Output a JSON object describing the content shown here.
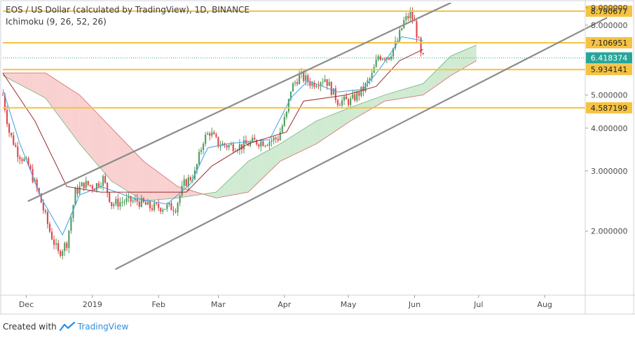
{
  "legend": {
    "title": "EOS / US Dollar (calculated by TradingView), 1D, BINANCE",
    "indicator": "Ichimoku (9, 26, 52, 26)"
  },
  "footer": {
    "created_with": "Created with",
    "brand": "TradingView"
  },
  "colors": {
    "up": "#4f9e5c",
    "down": "#e0474c",
    "level": "#f5c342",
    "channel": "#8c8c8c",
    "kumo_bull": "#c8e6c9",
    "kumo_bear": "#f8c8c8",
    "tenkan": "#3aa0e8",
    "kijun": "#9c2b2b",
    "price_badge": "#26a69a"
  },
  "chart_data": {
    "type": "candlestick",
    "title": "EOS / US Dollar (calculated by TradingView), 1D, BINANCE",
    "x_ticks": [
      "Dec",
      "2019",
      "Feb",
      "Mar",
      "Apr",
      "May",
      "Jun",
      "Jul",
      "Aug"
    ],
    "x_tick_dates": [
      "2018-12-01",
      "2019-01-01",
      "2019-02-01",
      "2019-03-01",
      "2019-04-01",
      "2019-05-01",
      "2019-06-01",
      "2019-07-01",
      "2019-08-01"
    ],
    "x_range": [
      "2018-11-20",
      "2019-08-20"
    ],
    "y_ticks": [
      "2.000000",
      "3.000000",
      "4.000000",
      "5.000000",
      "8.000000",
      "9.000000"
    ],
    "y_range": [
      1.3,
      9.3
    ],
    "y_scale": "log",
    "grid": false,
    "horizontal_levels": [
      {
        "value": 8.790677,
        "label": "8.790677"
      },
      {
        "value": 7.106951,
        "label": "7.106951"
      },
      {
        "value": 5.934141,
        "label": "5.934141"
      },
      {
        "value": 4.587199,
        "label": "4.587199"
      }
    ],
    "last_price": {
      "value": 6.418374,
      "label": "6.418374"
    },
    "channel_lines": [
      {
        "from": {
          "date": "2018-12-02",
          "price": 2.45
        },
        "to": {
          "date": "2019-06-18",
          "price": 9.3
        }
      },
      {
        "from": {
          "date": "2019-01-12",
          "price": 1.55
        },
        "to": {
          "date": "2019-08-30",
          "price": 8.4
        }
      }
    ],
    "close_path": [
      [
        "2018-11-20",
        5.0
      ],
      [
        "2018-11-23",
        3.9
      ],
      [
        "2018-11-27",
        3.4
      ],
      [
        "2018-12-02",
        3.1
      ],
      [
        "2018-12-07",
        2.55
      ],
      [
        "2018-12-12",
        2.0
      ],
      [
        "2018-12-16",
        1.72
      ],
      [
        "2018-12-20",
        1.85
      ],
      [
        "2018-12-24",
        2.6
      ],
      [
        "2018-12-28",
        2.75
      ],
      [
        "2019-01-02",
        2.7
      ],
      [
        "2019-01-06",
        2.85
      ],
      [
        "2019-01-10",
        2.4
      ],
      [
        "2019-01-16",
        2.45
      ],
      [
        "2019-01-22",
        2.45
      ],
      [
        "2019-01-28",
        2.35
      ],
      [
        "2019-02-04",
        2.35
      ],
      [
        "2019-02-09",
        2.35
      ],
      [
        "2019-02-13",
        2.75
      ],
      [
        "2019-02-18",
        2.95
      ],
      [
        "2019-02-22",
        3.7
      ],
      [
        "2019-02-25",
        3.9
      ],
      [
        "2019-03-01",
        3.6
      ],
      [
        "2019-03-06",
        3.55
      ],
      [
        "2019-03-12",
        3.55
      ],
      [
        "2019-03-18",
        3.65
      ],
      [
        "2019-03-24",
        3.65
      ],
      [
        "2019-03-29",
        3.75
      ],
      [
        "2019-04-02",
        4.4
      ],
      [
        "2019-04-04",
        5.2
      ],
      [
        "2019-04-08",
        5.7
      ],
      [
        "2019-04-14",
        5.4
      ],
      [
        "2019-04-20",
        5.6
      ],
      [
        "2019-04-26",
        4.8
      ],
      [
        "2019-05-02",
        4.8
      ],
      [
        "2019-05-08",
        5.2
      ],
      [
        "2019-05-12",
        5.7
      ],
      [
        "2019-05-15",
        6.5
      ],
      [
        "2019-05-20",
        6.5
      ],
      [
        "2019-05-24",
        7.2
      ],
      [
        "2019-05-27",
        8.2
      ],
      [
        "2019-05-30",
        8.6
      ],
      [
        "2019-06-01",
        8.1
      ],
      [
        "2019-06-03",
        7.1
      ],
      [
        "2019-06-04",
        6.5
      ],
      [
        "2019-06-05",
        6.4
      ]
    ],
    "ichimoku": {
      "tenkan": [
        [
          "2018-11-20",
          5.2
        ],
        [
          "2018-11-28",
          3.6
        ],
        [
          "2018-12-08",
          2.5
        ],
        [
          "2018-12-18",
          1.95
        ],
        [
          "2018-12-26",
          2.55
        ],
        [
          "2019-01-05",
          2.7
        ],
        [
          "2019-01-20",
          2.5
        ],
        [
          "2019-02-05",
          2.4
        ],
        [
          "2019-02-16",
          2.75
        ],
        [
          "2019-02-24",
          3.5
        ],
        [
          "2019-03-05",
          3.6
        ],
        [
          "2019-03-25",
          3.7
        ],
        [
          "2019-04-04",
          4.9
        ],
        [
          "2019-04-12",
          5.5
        ],
        [
          "2019-04-26",
          5.1
        ],
        [
          "2019-05-08",
          5.2
        ],
        [
          "2019-05-16",
          6.0
        ],
        [
          "2019-05-26",
          7.4
        ],
        [
          "2019-06-05",
          7.2
        ]
      ],
      "kijun": [
        [
          "2018-11-20",
          5.8
        ],
        [
          "2018-12-05",
          4.2
        ],
        [
          "2018-12-20",
          2.7
        ],
        [
          "2019-01-05",
          2.6
        ],
        [
          "2019-01-25",
          2.6
        ],
        [
          "2019-02-14",
          2.6
        ],
        [
          "2019-02-26",
          3.1
        ],
        [
          "2019-03-15",
          3.6
        ],
        [
          "2019-04-02",
          3.9
        ],
        [
          "2019-04-10",
          4.8
        ],
        [
          "2019-04-30",
          5.0
        ],
        [
          "2019-05-14",
          5.3
        ],
        [
          "2019-05-25",
          6.3
        ],
        [
          "2019-06-05",
          6.8
        ]
      ],
      "span_a": [
        [
          "2018-11-20",
          5.7
        ],
        [
          "2018-12-10",
          4.9
        ],
        [
          "2018-12-26",
          3.6
        ],
        [
          "2019-01-10",
          2.8
        ],
        [
          "2019-01-25",
          2.45
        ],
        [
          "2019-02-10",
          2.5
        ],
        [
          "2019-02-28",
          2.6
        ],
        [
          "2019-03-15",
          3.2
        ],
        [
          "2019-03-30",
          3.6
        ],
        [
          "2019-04-16",
          4.2
        ],
        [
          "2019-05-02",
          4.6
        ],
        [
          "2019-05-18",
          5.0
        ],
        [
          "2019-06-05",
          5.4
        ],
        [
          "2019-06-18",
          6.5
        ],
        [
          "2019-06-30",
          7.0
        ]
      ],
      "span_b": [
        [
          "2018-11-20",
          5.8
        ],
        [
          "2018-12-10",
          5.8
        ],
        [
          "2018-12-26",
          5.0
        ],
        [
          "2019-01-10",
          4.0
        ],
        [
          "2019-01-25",
          3.2
        ],
        [
          "2019-02-10",
          2.7
        ],
        [
          "2019-02-28",
          2.5
        ],
        [
          "2019-03-15",
          2.6
        ],
        [
          "2019-03-30",
          3.2
        ],
        [
          "2019-04-16",
          3.6
        ],
        [
          "2019-05-02",
          4.2
        ],
        [
          "2019-05-18",
          4.8
        ],
        [
          "2019-06-05",
          5.0
        ],
        [
          "2019-06-18",
          5.7
        ],
        [
          "2019-06-30",
          6.3
        ]
      ]
    }
  }
}
